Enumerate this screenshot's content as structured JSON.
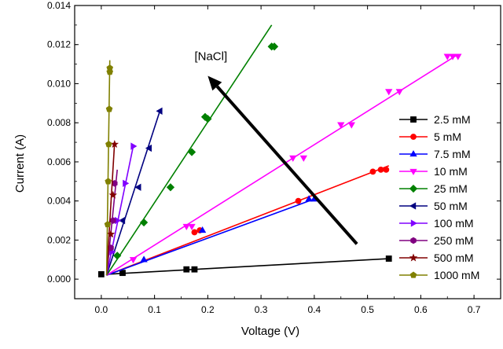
{
  "chart_data": {
    "type": "scatter",
    "title": "",
    "xlabel": "Voltage (V)",
    "ylabel": "Current (A)",
    "xlim": [
      -0.05,
      0.75
    ],
    "ylim": [
      -0.001,
      0.014
    ],
    "xticks": [
      0.0,
      0.1,
      0.2,
      0.3,
      0.4,
      0.5,
      0.6,
      0.7
    ],
    "xtick_labels": [
      "0.0",
      "0.1",
      "0.2",
      "0.3",
      "0.4",
      "0.5",
      "0.6",
      "0.7"
    ],
    "yticks": [
      0.0,
      0.002,
      0.004,
      0.006,
      0.008,
      0.01,
      0.012,
      0.014
    ],
    "ytick_labels": [
      "0.000",
      "0.002",
      "0.004",
      "0.006",
      "0.008",
      "0.010",
      "0.012",
      "0.014"
    ],
    "grid": false,
    "legend_position": "right",
    "annotation": {
      "text": "[NaCl]",
      "arrow_from": [
        0.48,
        0.0018
      ],
      "arrow_to": [
        0.2,
        0.0104
      ]
    },
    "series": [
      {
        "name": "2.5 mM",
        "color": "#000000",
        "marker": "square",
        "fit": [
          [
            0.01,
            0.00025
          ],
          [
            0.54,
            0.00105
          ]
        ],
        "points": [
          [
            0.0,
            0.00025
          ],
          [
            0.04,
            0.00032
          ],
          [
            0.16,
            0.0005
          ],
          [
            0.175,
            0.0005
          ],
          [
            0.54,
            0.00105
          ]
        ]
      },
      {
        "name": "5 mM",
        "color": "#ff0000",
        "marker": "circle",
        "fit": [
          [
            0.01,
            0.0002
          ],
          [
            0.54,
            0.0058
          ]
        ],
        "points": [
          [
            0.175,
            0.0024
          ],
          [
            0.185,
            0.0025
          ],
          [
            0.37,
            0.004
          ],
          [
            0.51,
            0.0055
          ],
          [
            0.525,
            0.0056
          ],
          [
            0.535,
            0.0056
          ]
        ]
      },
      {
        "name": "7.5 mM",
        "color": "#0000ff",
        "marker": "triangle-up",
        "fit": [
          [
            0.01,
            0.0002
          ],
          [
            0.4,
            0.0041
          ]
        ],
        "points": [
          [
            0.08,
            0.001
          ],
          [
            0.19,
            0.0025
          ],
          [
            0.39,
            0.0041
          ],
          [
            0.4,
            0.0041
          ]
        ]
      },
      {
        "name": "10 mM",
        "color": "#ff00ff",
        "marker": "triangle-down",
        "fit": [
          [
            0.01,
            0.0002
          ],
          [
            0.67,
            0.0115
          ]
        ],
        "points": [
          [
            0.06,
            0.001
          ],
          [
            0.16,
            0.0027
          ],
          [
            0.17,
            0.0027
          ],
          [
            0.36,
            0.0062
          ],
          [
            0.38,
            0.0062
          ],
          [
            0.45,
            0.0079
          ],
          [
            0.47,
            0.0079
          ],
          [
            0.54,
            0.0096
          ],
          [
            0.56,
            0.0096
          ],
          [
            0.65,
            0.0114
          ],
          [
            0.66,
            0.0114
          ],
          [
            0.67,
            0.0114
          ]
        ]
      },
      {
        "name": "25 mM",
        "color": "#008000",
        "marker": "diamond",
        "fit": [
          [
            0.01,
            0.0002
          ],
          [
            0.32,
            0.013
          ]
        ],
        "points": [
          [
            0.03,
            0.0012
          ],
          [
            0.08,
            0.0029
          ],
          [
            0.13,
            0.0047
          ],
          [
            0.17,
            0.0065
          ],
          [
            0.195,
            0.0083
          ],
          [
            0.2,
            0.0082
          ],
          [
            0.32,
            0.0119
          ],
          [
            0.325,
            0.0119
          ]
        ]
      },
      {
        "name": "50 mM",
        "color": "#000080",
        "marker": "triangle-left",
        "fit": [
          [
            0.01,
            0.0002
          ],
          [
            0.11,
            0.0086
          ]
        ],
        "points": [
          [
            0.04,
            0.003
          ],
          [
            0.07,
            0.0047
          ],
          [
            0.09,
            0.0067
          ],
          [
            0.11,
            0.0086
          ]
        ]
      },
      {
        "name": "100 mM",
        "color": "#8000ff",
        "marker": "triangle-right",
        "fit": [
          [
            0.01,
            0.0002
          ],
          [
            0.06,
            0.0068
          ]
        ],
        "points": [
          [
            0.02,
            0.0014
          ],
          [
            0.03,
            0.003
          ],
          [
            0.045,
            0.0049
          ],
          [
            0.06,
            0.0068
          ]
        ]
      },
      {
        "name": "250 mM",
        "color": "#800080",
        "marker": "hexagon",
        "fit": [
          [
            0.01,
            0.0002
          ],
          [
            0.03,
            0.0056
          ]
        ],
        "points": [
          [
            0.018,
            0.0016
          ],
          [
            0.022,
            0.003
          ],
          [
            0.025,
            0.0049
          ]
        ]
      },
      {
        "name": "500 mM",
        "color": "#800000",
        "marker": "star",
        "fit": [
          [
            0.01,
            0.0002
          ],
          [
            0.025,
            0.007
          ]
        ],
        "points": [
          [
            0.018,
            0.0023
          ],
          [
            0.022,
            0.0043
          ],
          [
            0.025,
            0.0069
          ]
        ]
      },
      {
        "name": "1000 mM",
        "color": "#808000",
        "marker": "pentagon",
        "fit": [
          [
            0.01,
            0.0002
          ],
          [
            0.016,
            0.0112
          ]
        ],
        "points": [
          [
            0.012,
            0.0028
          ],
          [
            0.013,
            0.005
          ],
          [
            0.014,
            0.0069
          ],
          [
            0.015,
            0.0087
          ],
          [
            0.016,
            0.0106
          ],
          [
            0.016,
            0.0108
          ]
        ]
      }
    ]
  }
}
